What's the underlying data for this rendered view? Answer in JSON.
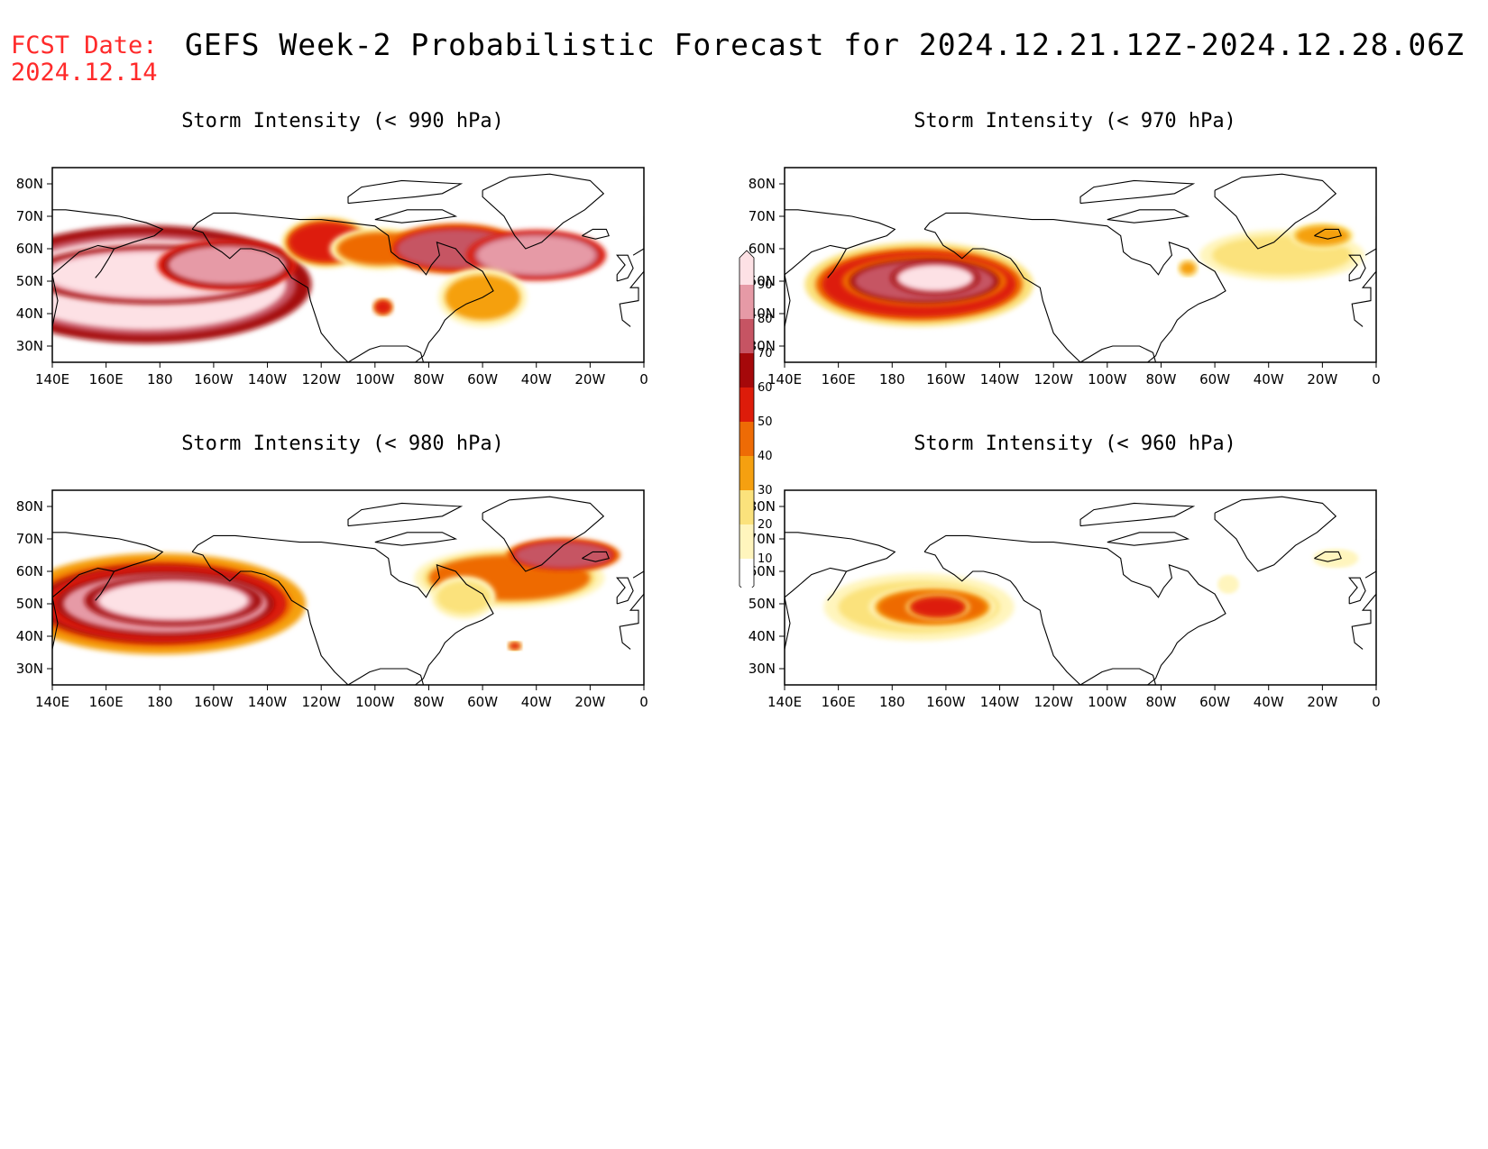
{
  "forecast_date": {
    "label": "FCST Date:",
    "value": "2024.12.14"
  },
  "title": "GEFS Week-2 Probabilistic Forecast for 2024.12.21.12Z-2024.12.28.06Z",
  "colors": {
    "fcst_date": "#ff2a2a",
    "levels": [
      "#ffffff",
      "#fff5bd",
      "#fbe27c",
      "#f5a010",
      "#ee6b05",
      "#dd1c0a",
      "#a5080a",
      "#c65463",
      "#e69aa6",
      "#fde1e5"
    ]
  },
  "colorbar": {
    "levels": [
      "10",
      "20",
      "30",
      "40",
      "50",
      "60",
      "70",
      "80",
      "90"
    ]
  },
  "axes": {
    "lat_labels": [
      "80N",
      "70N",
      "60N",
      "50N",
      "40N",
      "30N"
    ],
    "lon_labels": [
      "140E",
      "160E",
      "180",
      "160W",
      "140W",
      "120W",
      "100W",
      "80W",
      "60W",
      "40W",
      "20W",
      "0"
    ]
  },
  "panels": [
    {
      "id": "p990",
      "title": "Storm Intensity (< 990 hPa)",
      "blobs": [
        {
          "lon": 175,
          "lat": 49,
          "rx": 52,
          "ry": 14,
          "value": 92
        },
        {
          "lon": 178,
          "lat": 52,
          "rx": 40,
          "ry": 7,
          "value": 95
        },
        {
          "lon": 205,
          "lat": 55,
          "rx": 22,
          "ry": 6,
          "value": 80
        },
        {
          "lon": 242,
          "lat": 62,
          "rx": 14,
          "ry": 6,
          "value": 55
        },
        {
          "lon": 262,
          "lat": 60,
          "rx": 16,
          "ry": 5,
          "value": 40
        },
        {
          "lon": 290,
          "lat": 60,
          "rx": 22,
          "ry": 6,
          "value": 70
        },
        {
          "lon": 320,
          "lat": 58,
          "rx": 22,
          "ry": 6,
          "value": 85
        },
        {
          "lon": 300,
          "lat": 45,
          "rx": 14,
          "ry": 7,
          "value": 30
        },
        {
          "lon": 263,
          "lat": 42,
          "rx": 3,
          "ry": 2,
          "value": 55
        }
      ]
    },
    {
      "id": "p970",
      "title": "Storm Intensity (< 970 hPa)",
      "blobs": [
        {
          "lon": 190,
          "lat": 49,
          "rx": 36,
          "ry": 10,
          "value": 55
        },
        {
          "lon": 192,
          "lat": 50,
          "rx": 26,
          "ry": 6,
          "value": 75
        },
        {
          "lon": 196,
          "lat": 51,
          "rx": 14,
          "ry": 4,
          "value": 90
        },
        {
          "lon": 325,
          "lat": 58,
          "rx": 26,
          "ry": 6,
          "value": 20
        },
        {
          "lon": 340,
          "lat": 64,
          "rx": 10,
          "ry": 3,
          "value": 35
        },
        {
          "lon": 290,
          "lat": 54,
          "rx": 3,
          "ry": 2,
          "value": 30
        }
      ]
    },
    {
      "id": "p980",
      "title": "Storm Intensity (< 980 hPa)",
      "blobs": [
        {
          "lon": 180,
          "lat": 50,
          "rx": 46,
          "ry": 12,
          "value": 60
        },
        {
          "lon": 182,
          "lat": 50,
          "rx": 38,
          "ry": 9,
          "value": 80
        },
        {
          "lon": 185,
          "lat": 51,
          "rx": 28,
          "ry": 6,
          "value": 93
        },
        {
          "lon": 310,
          "lat": 58,
          "rx": 30,
          "ry": 7,
          "value": 40
        },
        {
          "lon": 330,
          "lat": 65,
          "rx": 18,
          "ry": 4,
          "value": 70
        },
        {
          "lon": 293,
          "lat": 52,
          "rx": 10,
          "ry": 5,
          "value": 25
        },
        {
          "lon": 312,
          "lat": 37,
          "rx": 2,
          "ry": 1,
          "value": 50
        }
      ]
    },
    {
      "id": "p960",
      "title": "Storm Intensity (< 960 hPa)",
      "blobs": [
        {
          "lon": 190,
          "lat": 49,
          "rx": 30,
          "ry": 8,
          "value": 25
        },
        {
          "lon": 195,
          "lat": 49,
          "rx": 20,
          "ry": 5,
          "value": 45
        },
        {
          "lon": 197,
          "lat": 49,
          "rx": 10,
          "ry": 3,
          "value": 55
        },
        {
          "lon": 345,
          "lat": 64,
          "rx": 7,
          "ry": 2,
          "value": 15
        },
        {
          "lon": 305,
          "lat": 56,
          "rx": 3,
          "ry": 2,
          "value": 15
        }
      ]
    }
  ]
}
